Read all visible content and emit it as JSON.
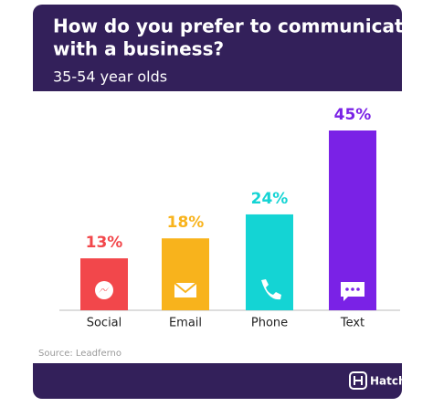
{
  "chart_data": {
    "type": "bar",
    "title": [
      "How do you prefer to communicate",
      "with a business?"
    ],
    "subtitle": "35-54 year olds",
    "categories": [
      "Social",
      "Email",
      "Phone",
      "Text"
    ],
    "values": [
      13,
      18,
      24,
      45
    ],
    "value_labels": [
      "13%",
      "18%",
      "24%",
      "45%"
    ],
    "colors": [
      "#f2474b",
      "#f8b31c",
      "#14d4d4",
      "#7a22e6"
    ],
    "source": "Source: Leadferno",
    "brand": "Hatch"
  }
}
